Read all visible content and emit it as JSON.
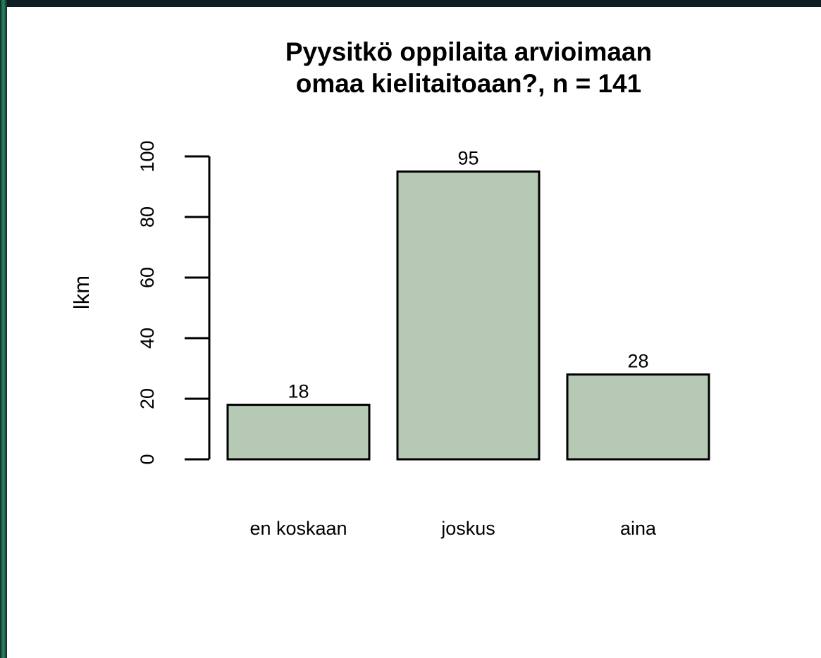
{
  "chart_data": {
    "type": "bar",
    "title": [
      "Pyysitkö oppilaita arvioimaan",
      "omaa kielitaitoaan?, n = 141"
    ],
    "y_label": "lkm",
    "categories": [
      "en koskaan",
      "joskus",
      "aina"
    ],
    "values": [
      18,
      95,
      28
    ],
    "color": "#b5c9b5",
    "ylim": [
      0,
      100
    ],
    "yticks": [
      0,
      20,
      40,
      60,
      80,
      100
    ],
    "grid": false
  }
}
